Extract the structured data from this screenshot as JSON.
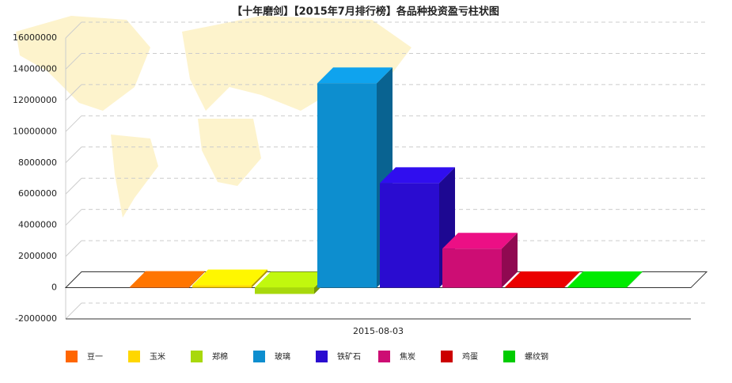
{
  "chart_data": {
    "type": "bar3d",
    "title": "【十年磨剑】【2015年7月排行榜】各品种投资盈亏柱状图",
    "categories": [
      "2015-08-03"
    ],
    "series": [
      {
        "name": "豆一",
        "color": "#ff6600",
        "values": [
          50000
        ]
      },
      {
        "name": "玉米",
        "color": "#ffd700",
        "values": [
          150000
        ]
      },
      {
        "name": "郑棉",
        "color": "#a8d80c",
        "values": [
          -400000
        ]
      },
      {
        "name": "玻璃",
        "color": "#0d8ecf",
        "values": [
          13100000
        ]
      },
      {
        "name": "铁矿石",
        "color": "#2a0cd0",
        "values": [
          6700000
        ]
      },
      {
        "name": "焦炭",
        "color": "#cd0d74",
        "values": [
          2500000
        ]
      },
      {
        "name": "鸡蛋",
        "color": "#cc0000",
        "values": [
          30000
        ]
      },
      {
        "name": "螺纹钢",
        "color": "#00cc00",
        "values": [
          30000
        ]
      }
    ],
    "ylim": [
      -2000000,
      16000000
    ],
    "yticks": [
      -2000000,
      0,
      2000000,
      4000000,
      6000000,
      8000000,
      10000000,
      12000000,
      14000000,
      16000000
    ],
    "grid": true
  }
}
